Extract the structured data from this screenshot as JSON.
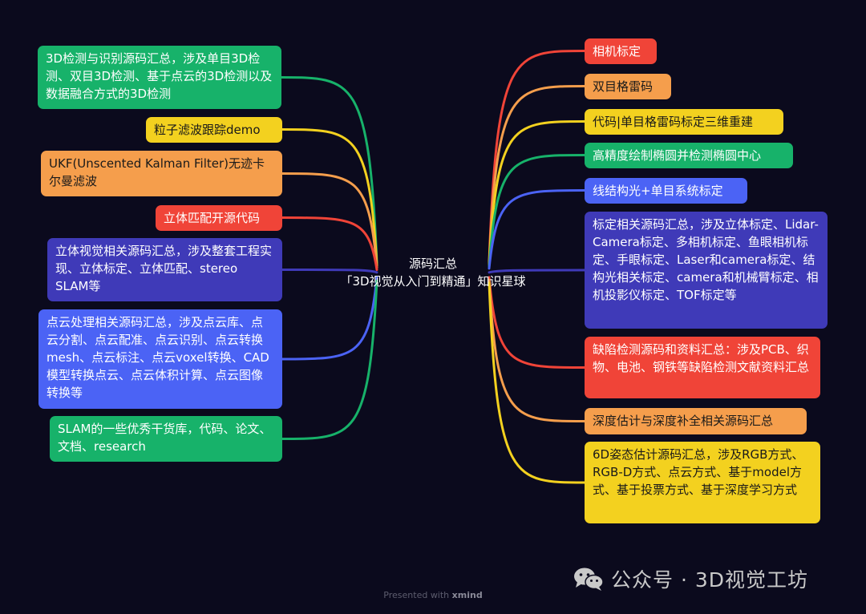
{
  "center": {
    "line1": "源码汇总",
    "line2": "「3D视觉从入门到精通」知识星球"
  },
  "colors": {
    "background": "#0b0a1d",
    "green": "#17b26a",
    "yellow": "#f3d11f",
    "orange": "#f59e4c",
    "red": "#f04438",
    "indigo": "#3f3ab8",
    "blue": "#4b63f5"
  },
  "left_nodes": [
    {
      "text": "3D检测与识别源码汇总，涉及单目3D检测、双目3D检测、基于点云的3D检测以及数据融合方式的3D检测",
      "color": "green"
    },
    {
      "text": "粒子滤波跟踪demo",
      "color": "yellow"
    },
    {
      "text": "UKF(Unscented Kalman Filter)无迹卡尔曼滤波",
      "color": "orange"
    },
    {
      "text": "立体匹配开源代码",
      "color": "red"
    },
    {
      "text": "立体视觉相关源码汇总，涉及整套工程实现、立体标定、立体匹配、stereo SLAM等",
      "color": "indigo"
    },
    {
      "text": "点云处理相关源码汇总，涉及点云库、点云分割、点云配准、点云识别、点云转换mesh、点云标注、点云voxel转换、CAD模型转换点云、点云体积计算、点云图像转换等",
      "color": "blue"
    },
    {
      "text": "SLAM的一些优秀干货库，代码、论文、文档、research",
      "color": "green"
    }
  ],
  "right_nodes": [
    {
      "text": "相机标定",
      "color": "red"
    },
    {
      "text": "双目格雷码",
      "color": "orange"
    },
    {
      "text": "代码|单目格雷码标定三维重建",
      "color": "yellow"
    },
    {
      "text": "高精度绘制椭圆并检测椭圆中心",
      "color": "green"
    },
    {
      "text": "线结构光+单目系统标定",
      "color": "blue"
    },
    {
      "text": "标定相关源码汇总，涉及立体标定、Lidar-Camera标定、多相机标定、鱼眼相机标定、手眼标定、Laser和camera标定、结构光相关标定、camera和机械臂标定、相机投影仪标定、TOF标定等",
      "color": "indigo"
    },
    {
      "text": "缺陷检测源码和资料汇总：涉及PCB、织物、电池、钢铁等缺陷检测文献资料汇总",
      "color": "red"
    },
    {
      "text": "深度估计与深度补全相关源码汇总",
      "color": "orange"
    },
    {
      "text": "6D姿态估计源码汇总，涉及RGB方式、RGB-D方式、点云方式、基于model方式、基于投票方式、基于深度学习方式",
      "color": "yellow"
    }
  ],
  "watermark": {
    "icon": "wechat-icon",
    "text": "公众号 · 3D视觉工坊"
  },
  "footer": {
    "prefix": "Presented with",
    "brand": "xmind"
  }
}
